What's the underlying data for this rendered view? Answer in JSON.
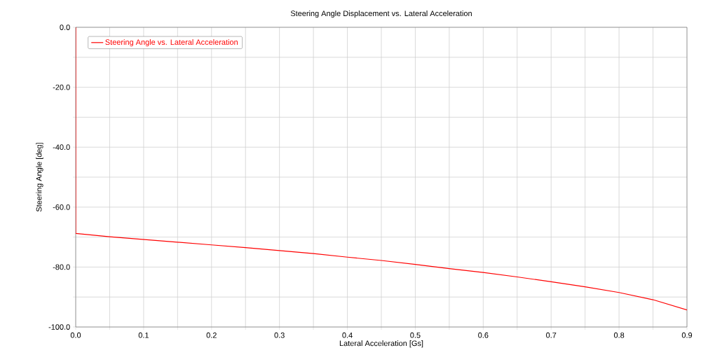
{
  "chart_data": {
    "type": "line",
    "title": "Steering Angle Displacement vs. Lateral Acceleration",
    "xlabel": "Lateral Acceleration [Gs]",
    "ylabel": "Steering Angle [deg]",
    "series": [
      {
        "name": "Steering Angle vs. Lateral Acceleration",
        "color": "#ff0000",
        "x": [
          0,
          0,
          0.05,
          0.1,
          0.15,
          0.2,
          0.25,
          0.3,
          0.35,
          0.4,
          0.45,
          0.5,
          0.55,
          0.6,
          0.65,
          0.7,
          0.75,
          0.8,
          0.85,
          0.9
        ],
        "values": [
          0,
          -68.8,
          -69.9,
          -70.8,
          -71.7,
          -72.6,
          -73.5,
          -74.5,
          -75.5,
          -76.7,
          -77.8,
          -79.1,
          -80.5,
          -81.8,
          -83.3,
          -84.9,
          -86.6,
          -88.5,
          -90.9,
          -94.3
        ]
      }
    ],
    "xlim": [
      0,
      0.9
    ],
    "ylim": [
      -100,
      0
    ],
    "xticks": [
      {
        "value": 0,
        "label": "0.0"
      },
      {
        "value": 0.05,
        "label": null
      },
      {
        "value": 0.1,
        "label": "0.1"
      },
      {
        "value": 0.15,
        "label": null
      },
      {
        "value": 0.2,
        "label": "0.2"
      },
      {
        "value": 0.25,
        "label": null
      },
      {
        "value": 0.3,
        "label": "0.3"
      },
      {
        "value": 0.35,
        "label": null
      },
      {
        "value": 0.4,
        "label": "0.4"
      },
      {
        "value": 0.45,
        "label": null
      },
      {
        "value": 0.5,
        "label": "0.5"
      },
      {
        "value": 0.55,
        "label": null
      },
      {
        "value": 0.6,
        "label": "0.6"
      },
      {
        "value": 0.65,
        "label": null
      },
      {
        "value": 0.7,
        "label": "0.7"
      },
      {
        "value": 0.75,
        "label": null
      },
      {
        "value": 0.8,
        "label": "0.8"
      },
      {
        "value": 0.85,
        "label": null
      },
      {
        "value": 0.9,
        "label": "0.9"
      }
    ],
    "yticks": [
      {
        "value": -100,
        "label": "-100.0"
      },
      {
        "value": -90,
        "label": null
      },
      {
        "value": -80,
        "label": "-80.0"
      },
      {
        "value": -70,
        "label": null
      },
      {
        "value": -60,
        "label": "-60.0"
      },
      {
        "value": -50,
        "label": null
      },
      {
        "value": -40,
        "label": "-40.0"
      },
      {
        "value": -30,
        "label": null
      },
      {
        "value": -20,
        "label": "-20.0"
      },
      {
        "value": -10,
        "label": null
      },
      {
        "value": 0,
        "label": "0.0"
      }
    ],
    "grid": true,
    "legend": "top left",
    "marker": "none",
    "line_style": "solid"
  }
}
